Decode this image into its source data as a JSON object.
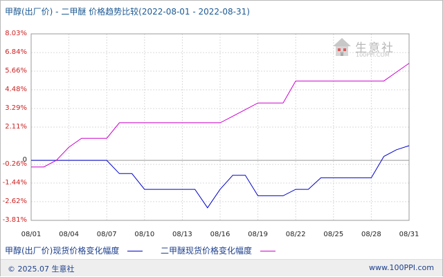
{
  "title": "甲醇(出厂价) - 二甲醚 价格趋势比较(2022-08-01 - 2022-08-31)",
  "footer": {
    "copyright": "© 2025.07 生意社",
    "site": "www.100PPI.com"
  },
  "watermark": {
    "text": "生意社",
    "sub": "100PPI.COM"
  },
  "chart_data": {
    "type": "line",
    "title": "甲醇(出厂价) - 二甲醚 价格趋势比较(2022-08-01 - 2022-08-31)",
    "xlabel": "",
    "ylabel": "",
    "x": [
      "08/01",
      "08/02",
      "08/03",
      "08/04",
      "08/05",
      "08/06",
      "08/07",
      "08/08",
      "08/09",
      "08/10",
      "08/11",
      "08/12",
      "08/13",
      "08/14",
      "08/15",
      "08/16",
      "08/17",
      "08/18",
      "08/19",
      "08/20",
      "08/21",
      "08/22",
      "08/23",
      "08/24",
      "08/25",
      "08/26",
      "08/27",
      "08/28",
      "08/29",
      "08/30",
      "08/31"
    ],
    "x_ticks": [
      "08/01",
      "08/04",
      "08/07",
      "08/10",
      "08/13",
      "08/16",
      "08/19",
      "08/22",
      "08/25",
      "08/28",
      "08/31"
    ],
    "y_ticks": [
      "8.03%",
      "6.84%",
      "5.66%",
      "4.48%",
      "3.29%",
      "2.11%",
      "0",
      "-0.26%",
      "-1.44%",
      "-2.62%",
      "-3.81%"
    ],
    "y_tick_values": [
      8.03,
      6.84,
      5.66,
      4.48,
      3.29,
      2.11,
      0,
      -0.26,
      -1.44,
      -2.62,
      -3.81
    ],
    "ylim": [
      -3.81,
      8.03
    ],
    "grid": true,
    "legend_position": "bottom",
    "series": [
      {
        "name": "甲醇(出厂价)现货价格变化幅度",
        "color": "#0000cc",
        "values": [
          0,
          0,
          0,
          0,
          0,
          0,
          0,
          -0.84,
          -0.84,
          -1.84,
          -1.84,
          -1.84,
          -1.84,
          -1.84,
          -3.01,
          -1.84,
          -0.95,
          -0.95,
          -2.25,
          -2.25,
          -2.25,
          -1.84,
          -1.84,
          -1.11,
          -1.11,
          -1.11,
          -1.11,
          -1.11,
          0.25,
          0.67,
          0.93
        ]
      },
      {
        "name": "二甲醚现货价格变化幅度",
        "color": "#cc00cc",
        "values": [
          -0.42,
          -0.42,
          0,
          0.84,
          1.4,
          1.4,
          1.4,
          2.38,
          2.38,
          2.38,
          2.38,
          2.38,
          2.38,
          2.38,
          2.38,
          2.38,
          2.8,
          3.22,
          3.64,
          3.64,
          3.64,
          5.04,
          5.04,
          5.04,
          5.04,
          5.04,
          5.04,
          5.04,
          5.04,
          5.6,
          6.16
        ]
      }
    ]
  }
}
